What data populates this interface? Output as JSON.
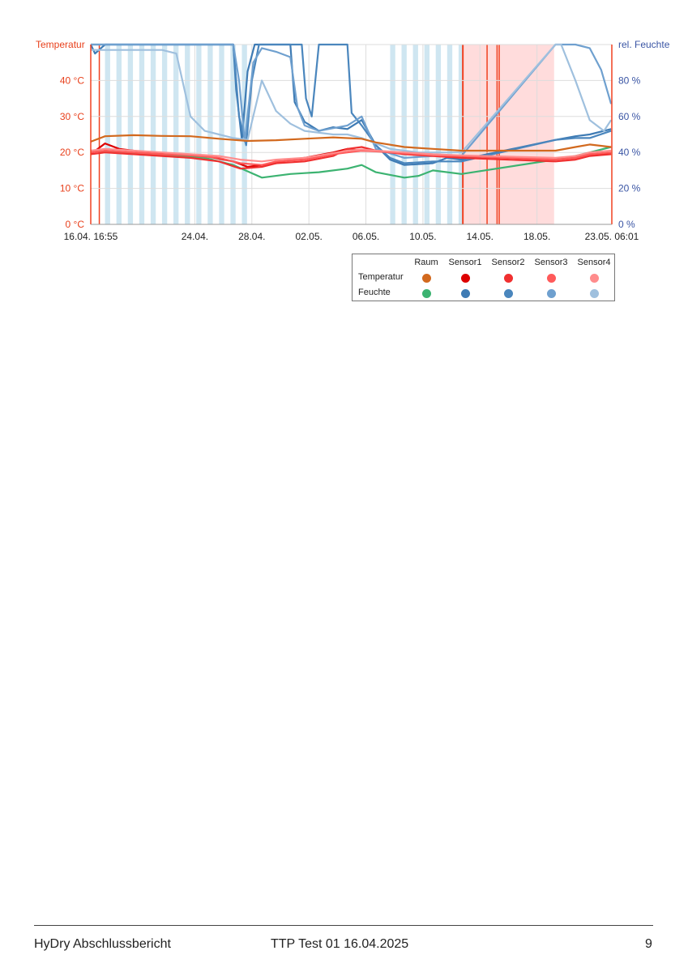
{
  "chart_data": {
    "type": "line",
    "left_axis": {
      "label": "Temperatur",
      "ticks": [
        "0 °C",
        "10 °C",
        "20 °C",
        "30 °C",
        "40 °C"
      ],
      "range": [
        0,
        50
      ],
      "color": "#e8401c"
    },
    "right_axis": {
      "label": "rel. Feuchte",
      "ticks": [
        "0 %",
        "20 %",
        "40 %",
        "60 %",
        "80 %"
      ],
      "range": [
        0,
        100
      ],
      "color": "#3a55a4"
    },
    "x_range_days": [
      0,
      36.55
    ],
    "x_ticks": [
      {
        "label": "16.04. 16:55",
        "day": 0
      },
      {
        "label": "24.04.",
        "day": 7.3
      },
      {
        "label": "28.04.",
        "day": 11.3
      },
      {
        "label": "02.05.",
        "day": 15.3
      },
      {
        "label": "06.05.",
        "day": 19.3
      },
      {
        "label": "10.05.",
        "day": 23.3
      },
      {
        "label": "14.05.",
        "day": 27.3
      },
      {
        "label": "18.05.",
        "day": 31.3
      },
      {
        "label": "23.05. 06:01",
        "day": 36.55
      }
    ],
    "grid": true,
    "shaded_bands": [
      {
        "kind": "blue-stripes",
        "from_day": 1.0,
        "to_day": 10.7
      },
      {
        "kind": "blue-stripes",
        "from_day": 21.0,
        "to_day": 26.0
      },
      {
        "kind": "red-zone",
        "from_day": 26.1,
        "to_day": 32.5
      }
    ],
    "temperature_series": [
      {
        "name": "Raum",
        "color": "#d2691e",
        "points": [
          [
            0,
            23
          ],
          [
            1,
            24.5
          ],
          [
            3,
            24.8
          ],
          [
            5,
            24.6
          ],
          [
            7,
            24.5
          ],
          [
            9,
            23.8
          ],
          [
            11,
            23.2
          ],
          [
            13,
            23.4
          ],
          [
            15,
            23.8
          ],
          [
            17,
            24.2
          ],
          [
            19,
            23.8
          ],
          [
            20,
            22.8
          ],
          [
            22,
            21.5
          ],
          [
            24,
            21
          ],
          [
            26,
            20.5
          ],
          [
            32.6,
            20.5
          ],
          [
            34,
            21.5
          ],
          [
            35,
            22.2
          ],
          [
            36.5,
            21.5
          ]
        ]
      },
      {
        "name": "Sensor1",
        "color": "#dd0000",
        "points": [
          [
            0,
            19.5
          ],
          [
            1,
            22.5
          ],
          [
            2,
            21
          ],
          [
            4,
            20
          ],
          [
            6,
            19.5
          ],
          [
            8,
            19
          ],
          [
            10,
            17.5
          ],
          [
            11,
            16
          ],
          [
            12,
            16.5
          ],
          [
            13,
            17
          ],
          [
            14,
            18
          ],
          [
            15,
            18.5
          ],
          [
            17,
            20
          ],
          [
            18,
            21
          ],
          [
            19,
            20.5
          ],
          [
            20,
            20.5
          ],
          [
            22,
            19.8
          ],
          [
            24,
            19.2
          ],
          [
            26,
            19
          ],
          [
            32.6,
            18
          ],
          [
            34,
            18.5
          ],
          [
            35,
            19.5
          ],
          [
            36.5,
            19.5
          ]
        ]
      },
      {
        "name": "Sensor2",
        "color": "#f03030",
        "points": [
          [
            0,
            19.5
          ],
          [
            1,
            20
          ],
          [
            3,
            19.5
          ],
          [
            5,
            19
          ],
          [
            7,
            18.5
          ],
          [
            9,
            17.5
          ],
          [
            10.5,
            15.5
          ],
          [
            12,
            16
          ],
          [
            13,
            17
          ],
          [
            15,
            17.5
          ],
          [
            17,
            19
          ],
          [
            18,
            21
          ],
          [
            19,
            21.5
          ],
          [
            20,
            20.5
          ],
          [
            22,
            19.5
          ],
          [
            24,
            19
          ],
          [
            26,
            18.5
          ],
          [
            32.6,
            17.5
          ],
          [
            34,
            18
          ],
          [
            35,
            19
          ],
          [
            36.5,
            19.5
          ]
        ]
      },
      {
        "name": "Sensor3",
        "color": "#ff5a5a",
        "points": [
          [
            0,
            20
          ],
          [
            1,
            20.5
          ],
          [
            3,
            20
          ],
          [
            5,
            19.5
          ],
          [
            7,
            19.2
          ],
          [
            9,
            18.5
          ],
          [
            10.5,
            17
          ],
          [
            12,
            16.5
          ],
          [
            13,
            17.5
          ],
          [
            15,
            18
          ],
          [
            17,
            19.5
          ],
          [
            18,
            20
          ],
          [
            19,
            20.5
          ],
          [
            20,
            20.3
          ],
          [
            22,
            19.8
          ],
          [
            24,
            19.2
          ],
          [
            26,
            19
          ],
          [
            32.6,
            18
          ],
          [
            34,
            18.5
          ],
          [
            35,
            19.5
          ],
          [
            36.5,
            20
          ]
        ]
      },
      {
        "name": "Sensor4",
        "color": "#ff8c8c",
        "points": [
          [
            0,
            20.5
          ],
          [
            1,
            21
          ],
          [
            3,
            20.5
          ],
          [
            5,
            20
          ],
          [
            7,
            19.5
          ],
          [
            9,
            19
          ],
          [
            10.5,
            18
          ],
          [
            12,
            17.5
          ],
          [
            13,
            18
          ],
          [
            15,
            18.5
          ],
          [
            17,
            19.8
          ],
          [
            18,
            20.5
          ],
          [
            19,
            20.8
          ],
          [
            20,
            20.5
          ],
          [
            22,
            20
          ],
          [
            24,
            19.5
          ],
          [
            26,
            19.2
          ],
          [
            32.6,
            18.5
          ],
          [
            34,
            19
          ],
          [
            35,
            20
          ],
          [
            36.5,
            20.5
          ]
        ]
      }
    ],
    "humidity_series": [
      {
        "name": "Raum",
        "color": "#3cb371",
        "points": [
          [
            0,
            41
          ],
          [
            2,
            40
          ],
          [
            4,
            39
          ],
          [
            6,
            38
          ],
          [
            8,
            37
          ],
          [
            10,
            33
          ],
          [
            12,
            26
          ],
          [
            14,
            28
          ],
          [
            16,
            29
          ],
          [
            18,
            31
          ],
          [
            19,
            33
          ],
          [
            20,
            29
          ],
          [
            22,
            26
          ],
          [
            23,
            27
          ],
          [
            24,
            30
          ],
          [
            26,
            28
          ],
          [
            32.6,
            36
          ],
          [
            34,
            38
          ],
          [
            35,
            40
          ],
          [
            36.5,
            43
          ]
        ]
      },
      {
        "name": "Sensor1",
        "color": "#3e7bb4",
        "points": [
          [
            0,
            100
          ],
          [
            0.3,
            95
          ],
          [
            1,
            100
          ],
          [
            10,
            100
          ],
          [
            10.2,
            75
          ],
          [
            10.6,
            47
          ],
          [
            11,
            85
          ],
          [
            11.5,
            100
          ],
          [
            14,
            100
          ],
          [
            14.3,
            68
          ],
          [
            15,
            57
          ],
          [
            16,
            52
          ],
          [
            17,
            54
          ],
          [
            18,
            53
          ],
          [
            19,
            58
          ],
          [
            20,
            44
          ],
          [
            21,
            36
          ],
          [
            22,
            33
          ],
          [
            24,
            34
          ],
          [
            25,
            37
          ],
          [
            26,
            36
          ],
          [
            32.6,
            47
          ],
          [
            34,
            49
          ],
          [
            35,
            50
          ],
          [
            36.5,
            53
          ]
        ]
      },
      {
        "name": "Sensor2",
        "color": "#4a86bd",
        "points": [
          [
            0,
            100
          ],
          [
            10,
            100
          ],
          [
            10.4,
            60
          ],
          [
            10.9,
            44
          ],
          [
            11.3,
            80
          ],
          [
            11.8,
            100
          ],
          [
            14.5,
            100
          ],
          [
            14.8,
            100
          ],
          [
            15.1,
            70
          ],
          [
            15.5,
            60
          ],
          [
            16,
            100
          ],
          [
            18,
            100
          ],
          [
            18.3,
            62
          ],
          [
            19,
            55
          ],
          [
            20,
            44
          ],
          [
            21,
            37
          ],
          [
            22,
            34
          ],
          [
            24,
            35
          ],
          [
            26,
            35
          ],
          [
            32.6,
            47
          ],
          [
            34,
            48
          ],
          [
            35,
            48
          ],
          [
            36.5,
            52
          ]
        ]
      },
      {
        "name": "Sensor3",
        "color": "#6fa0cf",
        "points": [
          [
            0,
            100
          ],
          [
            10,
            100
          ],
          [
            10.4,
            80
          ],
          [
            10.8,
            46
          ],
          [
            11.4,
            90
          ],
          [
            12,
            98
          ],
          [
            13,
            96
          ],
          [
            14,
            93
          ],
          [
            14.5,
            65
          ],
          [
            15,
            55
          ],
          [
            16,
            52
          ],
          [
            18,
            55
          ],
          [
            19,
            60
          ],
          [
            20,
            42
          ],
          [
            22,
            37
          ],
          [
            24,
            38
          ],
          [
            26,
            38
          ],
          [
            32.6,
            100
          ],
          [
            34,
            100
          ],
          [
            35,
            98
          ],
          [
            35.8,
            86
          ],
          [
            36.5,
            67
          ]
        ]
      },
      {
        "name": "Sensor4",
        "color": "#9fc0de",
        "points": [
          [
            0,
            97
          ],
          [
            5,
            97
          ],
          [
            6,
            95
          ],
          [
            7,
            60
          ],
          [
            8,
            52
          ],
          [
            9,
            50
          ],
          [
            10,
            48
          ],
          [
            11,
            47
          ],
          [
            12,
            80
          ],
          [
            13,
            63
          ],
          [
            14,
            56
          ],
          [
            15,
            52
          ],
          [
            17,
            50
          ],
          [
            18,
            50
          ],
          [
            19,
            48
          ],
          [
            21,
            42
          ],
          [
            23,
            40
          ],
          [
            25,
            40
          ],
          [
            26,
            40
          ],
          [
            32.6,
            100
          ],
          [
            33,
            100
          ],
          [
            34,
            80
          ],
          [
            35,
            58
          ],
          [
            36,
            52
          ],
          [
            36.5,
            58
          ]
        ]
      }
    ]
  },
  "legend": {
    "columns": [
      "Raum",
      "Sensor1",
      "Sensor2",
      "Sensor3",
      "Sensor4"
    ],
    "rows": [
      {
        "label": "Temperatur",
        "colors": [
          "#d2691e",
          "#dd0000",
          "#f03030",
          "#ff5a5a",
          "#ff8c8c"
        ]
      },
      {
        "label": "Feuchte",
        "colors": [
          "#3cb371",
          "#3e7bb4",
          "#4a86bd",
          "#6fa0cf",
          "#9fc0de"
        ]
      }
    ]
  },
  "footer": {
    "left": "HyDry Abschlussbericht",
    "center": "TTP Test 01 16.04.2025",
    "page": "9"
  }
}
